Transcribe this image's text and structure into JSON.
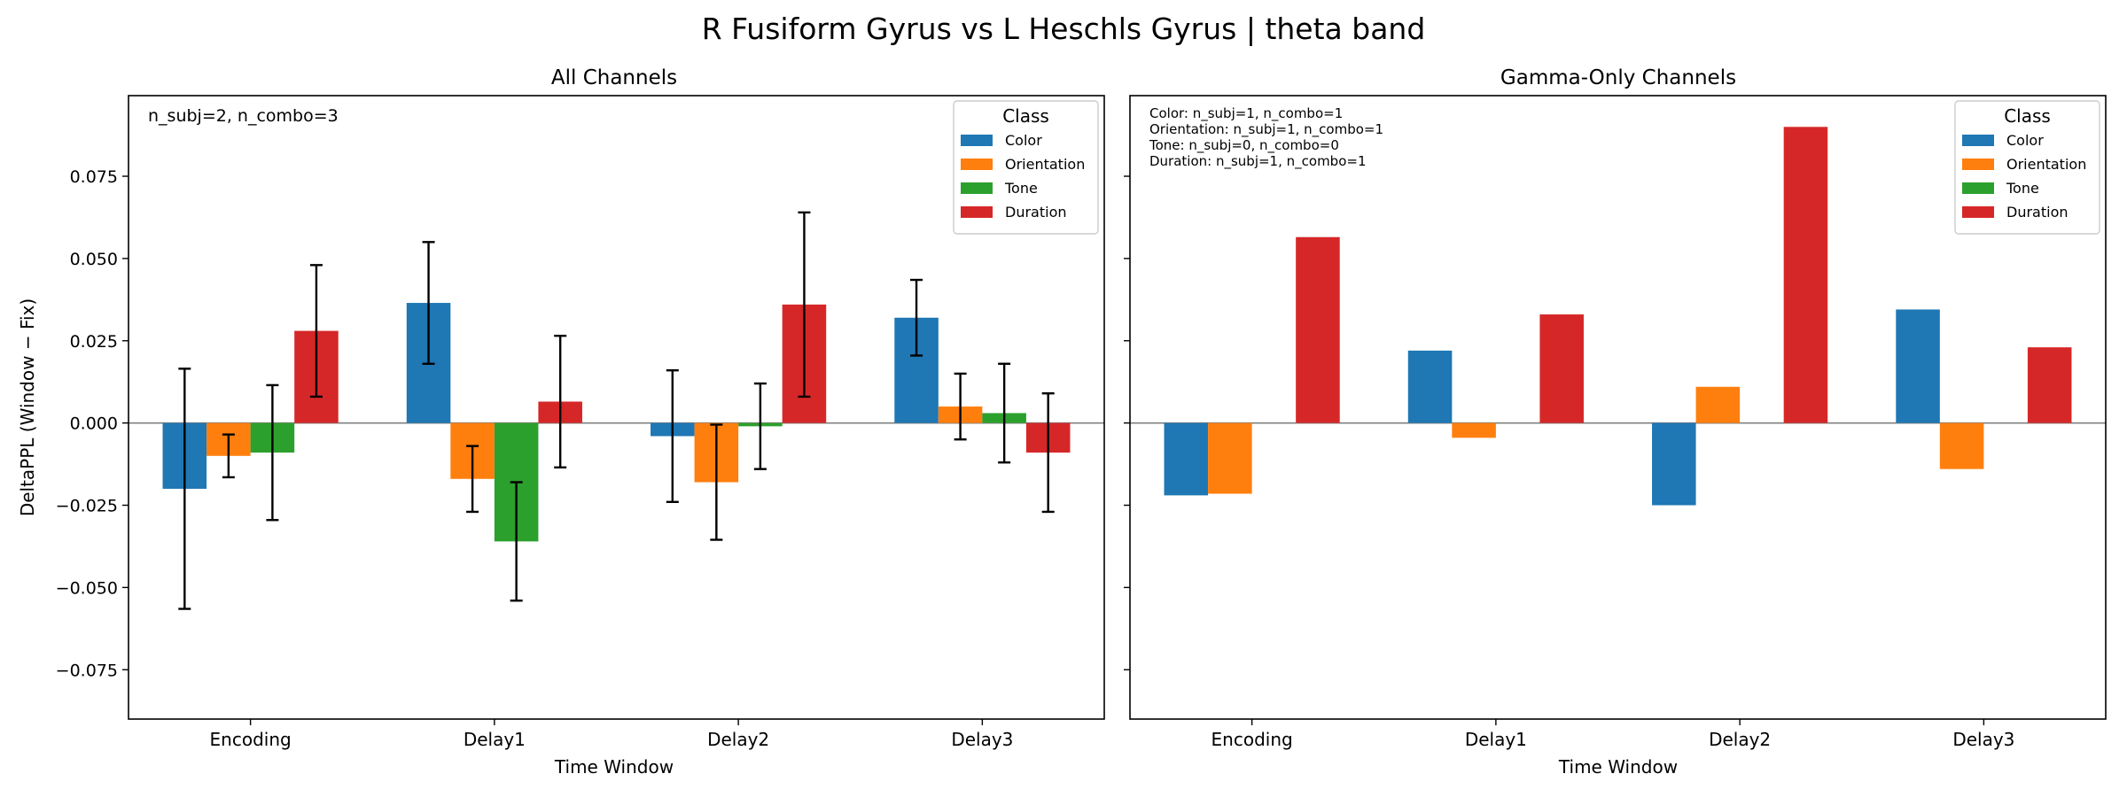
{
  "figure": {
    "title": "R Fusiform Gyrus vs L Heschls Gyrus  |  theta band"
  },
  "legend": {
    "title": "Class",
    "position": "top-right"
  },
  "shared": {
    "ylabel": "DeltaPPL (Window − Fix)",
    "ylim": [
      -0.09,
      0.0995
    ],
    "yticks": [
      -0.075,
      -0.05,
      -0.025,
      0.0,
      0.025,
      0.05,
      0.075
    ],
    "ytick_labels": [
      "−0.075",
      "−0.050",
      "−0.025",
      "0.000",
      "0.025",
      "0.050",
      "0.075"
    ]
  },
  "series_colors": {
    "Color": "#1f77b4",
    "Orientation": "#ff7f0e",
    "Tone": "#2ca02c",
    "Duration": "#d62728"
  },
  "chart_data": [
    {
      "type": "bar",
      "title": "All Channels",
      "xlabel": "Time Window",
      "ylabel": "DeltaPPL (Window − Fix)",
      "ylim": [
        -0.09,
        0.0995
      ],
      "categories": [
        "Encoding",
        "Delay1",
        "Delay2",
        "Delay3"
      ],
      "annotation": [
        "n_subj=2, n_combo=3"
      ],
      "series": [
        {
          "name": "Color",
          "values": [
            -0.02,
            0.0365,
            -0.004,
            0.032
          ],
          "errors": [
            0.0365,
            0.0185,
            0.02,
            0.0115
          ]
        },
        {
          "name": "Orientation",
          "values": [
            -0.01,
            -0.017,
            -0.018,
            0.005
          ],
          "errors": [
            0.0065,
            0.01,
            0.0175,
            0.01
          ]
        },
        {
          "name": "Tone",
          "values": [
            -0.009,
            -0.036,
            -0.001,
            0.003
          ],
          "errors": [
            0.0205,
            0.018,
            0.013,
            0.015
          ]
        },
        {
          "name": "Duration",
          "values": [
            0.028,
            0.0065,
            0.036,
            -0.009
          ],
          "errors": [
            0.02,
            0.02,
            0.028,
            0.018
          ]
        }
      ]
    },
    {
      "type": "bar",
      "title": "Gamma-Only Channels",
      "xlabel": "Time Window",
      "ylim": [
        -0.09,
        0.0995
      ],
      "categories": [
        "Encoding",
        "Delay1",
        "Delay2",
        "Delay3"
      ],
      "annotation": [
        "Color: n_subj=1, n_combo=1",
        "Orientation: n_subj=1, n_combo=1",
        "Tone: n_subj=0, n_combo=0",
        "Duration: n_subj=1, n_combo=1"
      ],
      "series": [
        {
          "name": "Color",
          "values": [
            -0.022,
            0.022,
            -0.025,
            0.0345
          ]
        },
        {
          "name": "Orientation",
          "values": [
            -0.0215,
            -0.0045,
            0.011,
            -0.014
          ]
        },
        {
          "name": "Tone",
          "values": [
            null,
            null,
            null,
            null
          ]
        },
        {
          "name": "Duration",
          "values": [
            0.0565,
            0.033,
            0.09,
            0.023
          ]
        }
      ]
    }
  ]
}
